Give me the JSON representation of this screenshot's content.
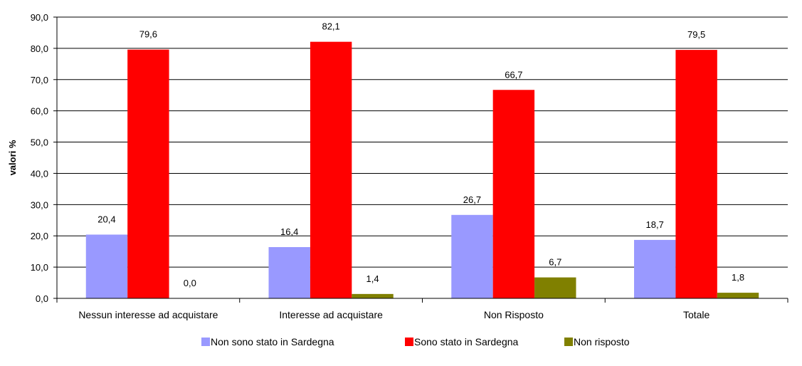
{
  "chart_data": {
    "type": "bar",
    "title": "",
    "xlabel": "",
    "ylabel": "valori %",
    "ylim": [
      0,
      90
    ],
    "y_ticks": [
      "0,0",
      "10,0",
      "20,0",
      "30,0",
      "40,0",
      "50,0",
      "60,0",
      "70,0",
      "80,0",
      "90,0"
    ],
    "categories": [
      "Nessun interesse ad acquistare",
      "Interesse ad acquistare",
      "Non Risposto",
      "Totale"
    ],
    "series": [
      {
        "name": "Non sono stato in Sardegna",
        "color": "#9999ff",
        "values": [
          20.4,
          16.4,
          26.7,
          18.7
        ],
        "labels": [
          "20,4",
          "16,4",
          "26,7",
          "18,7"
        ]
      },
      {
        "name": "Sono stato in Sardegna",
        "color": "#ff0000",
        "values": [
          79.6,
          82.1,
          66.7,
          79.5
        ],
        "labels": [
          "79,6",
          "82,1",
          "66,7",
          "79,5"
        ]
      },
      {
        "name": "Non risposto",
        "color": "#808000",
        "values": [
          0.0,
          1.4,
          6.7,
          1.8
        ],
        "labels": [
          "0,0",
          "1,4",
          "6,7",
          "1,8"
        ]
      }
    ],
    "grid": true,
    "legend_position": "bottom"
  }
}
